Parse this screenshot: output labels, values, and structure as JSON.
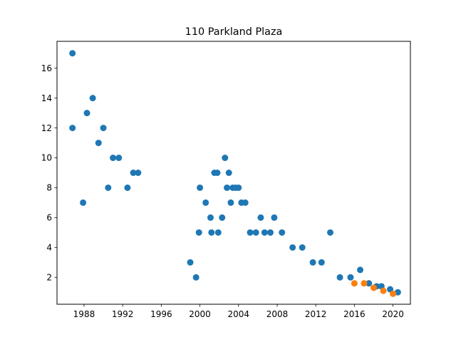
{
  "chart_data": {
    "type": "scatter",
    "title": "110 Parkland Plaza",
    "xlabel": "",
    "ylabel": "",
    "xlim": [
      1985.2,
      2021.8
    ],
    "ylim": [
      0.2,
      17.8
    ],
    "x_ticks": [
      1988,
      1992,
      1996,
      2000,
      2004,
      2008,
      2012,
      2016,
      2020
    ],
    "y_ticks": [
      2,
      4,
      6,
      8,
      10,
      12,
      14,
      16
    ],
    "grid": false,
    "legend": "none",
    "series": [
      {
        "color": "#1f77b4",
        "points": [
          [
            1986.8,
            17
          ],
          [
            1986.8,
            12
          ],
          [
            1987.9,
            7
          ],
          [
            1988.3,
            13
          ],
          [
            1988.9,
            14
          ],
          [
            1989.5,
            11
          ],
          [
            1990.0,
            12
          ],
          [
            1990.5,
            8
          ],
          [
            1991.0,
            10
          ],
          [
            1991.6,
            10
          ],
          [
            1992.5,
            8
          ],
          [
            1993.1,
            9
          ],
          [
            1993.6,
            9
          ],
          [
            1999.0,
            3
          ],
          [
            1999.6,
            2
          ],
          [
            1999.9,
            5
          ],
          [
            2000.0,
            8
          ],
          [
            2000.6,
            7
          ],
          [
            2001.1,
            6
          ],
          [
            2001.2,
            5
          ],
          [
            2001.5,
            9
          ],
          [
            2001.8,
            9
          ],
          [
            2001.9,
            5
          ],
          [
            2002.3,
            6
          ],
          [
            2002.6,
            10
          ],
          [
            2002.8,
            8
          ],
          [
            2003.0,
            9
          ],
          [
            2003.2,
            7
          ],
          [
            2003.4,
            8
          ],
          [
            2003.7,
            8
          ],
          [
            2004.0,
            8
          ],
          [
            2004.3,
            7
          ],
          [
            2004.7,
            7
          ],
          [
            2005.2,
            5
          ],
          [
            2005.8,
            5
          ],
          [
            2006.3,
            6
          ],
          [
            2006.7,
            5
          ],
          [
            2007.3,
            5
          ],
          [
            2007.7,
            6
          ],
          [
            2008.5,
            5
          ],
          [
            2009.6,
            4
          ],
          [
            2010.6,
            4
          ],
          [
            2011.7,
            3
          ],
          [
            2012.6,
            3
          ],
          [
            2013.5,
            5
          ],
          [
            2014.5,
            2
          ],
          [
            2015.6,
            2
          ],
          [
            2016.6,
            2.5
          ],
          [
            2017.5,
            1.6
          ],
          [
            2018.3,
            1.4
          ],
          [
            2018.8,
            1.4
          ],
          [
            2019.7,
            1.2
          ],
          [
            2020.5,
            1.0
          ]
        ]
      },
      {
        "color": "#ff7f0e",
        "points": [
          [
            2016.0,
            1.6
          ],
          [
            2017.0,
            1.6
          ],
          [
            2018.0,
            1.3
          ],
          [
            2019.0,
            1.1
          ],
          [
            2020.0,
            0.9
          ]
        ]
      }
    ]
  }
}
